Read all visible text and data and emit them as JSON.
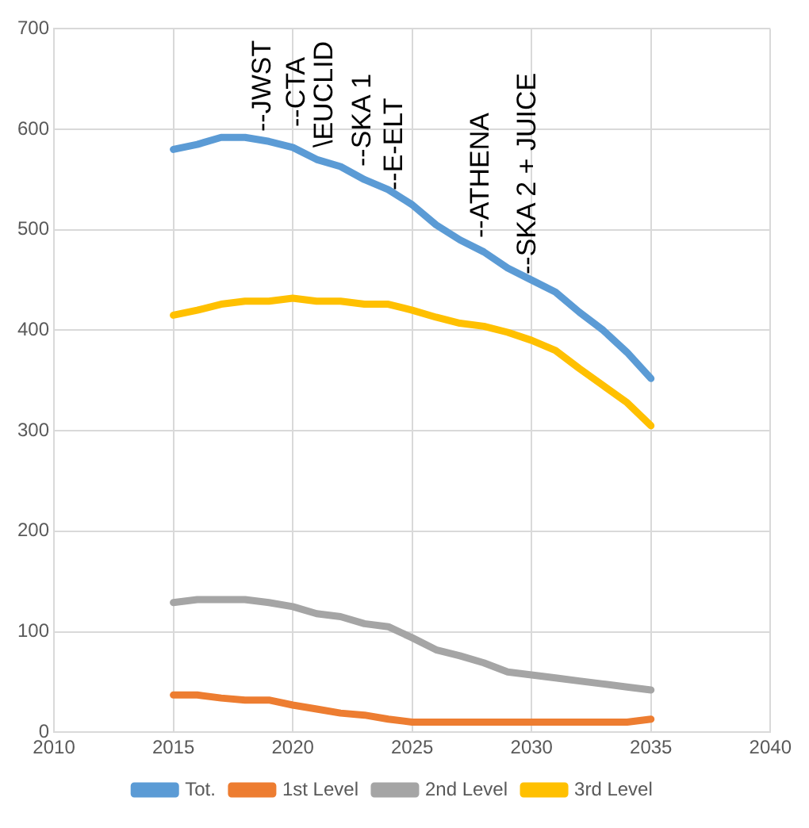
{
  "chart_data": {
    "type": "line",
    "x": [
      2015,
      2016,
      2017,
      2018,
      2019,
      2020,
      2021,
      2022,
      2023,
      2024,
      2025,
      2026,
      2027,
      2028,
      2029,
      2030,
      2031,
      2032,
      2033,
      2034,
      2035
    ],
    "series": [
      {
        "name": "Tot.",
        "color": "#5b9bd5",
        "values": [
          580,
          585,
          592,
          592,
          588,
          582,
          570,
          563,
          550,
          540,
          525,
          505,
          490,
          478,
          462,
          450,
          438,
          418,
          400,
          378,
          352
        ]
      },
      {
        "name": "1st Level",
        "color": "#ed7d31",
        "values": [
          37,
          37,
          34,
          32,
          32,
          27,
          23,
          19,
          17,
          13,
          10,
          10,
          10,
          10,
          10,
          10,
          10,
          10,
          10,
          10,
          13
        ]
      },
      {
        "name": "2nd Level",
        "color": "#a5a5a5",
        "values": [
          129,
          132,
          132,
          132,
          129,
          125,
          118,
          115,
          108,
          105,
          94,
          82,
          76,
          69,
          60,
          57,
          54,
          51,
          48,
          45,
          42
        ]
      },
      {
        "name": "3rd Level",
        "color": "#ffc000",
        "values": [
          415,
          420,
          426,
          429,
          429,
          432,
          429,
          429,
          426,
          426,
          420,
          413,
          407,
          404,
          398,
          390,
          380,
          362,
          345,
          328,
          305
        ]
      }
    ],
    "xlim": [
      2010,
      2040
    ],
    "xticks": [
      2010,
      2015,
      2020,
      2025,
      2030,
      2035,
      2040
    ],
    "ylim": [
      0,
      700
    ],
    "yticks": [
      0,
      100,
      200,
      300,
      400,
      500,
      600,
      700
    ],
    "grid": true,
    "legend": "bottom",
    "marker": "none",
    "line_style": "solid",
    "annotations": [
      "--JWST",
      "--CTA",
      "\\EUCLID",
      "--SKA 1",
      "--E-ELT",
      "--ATHENA",
      "--SKA 2 + JUICE"
    ]
  }
}
